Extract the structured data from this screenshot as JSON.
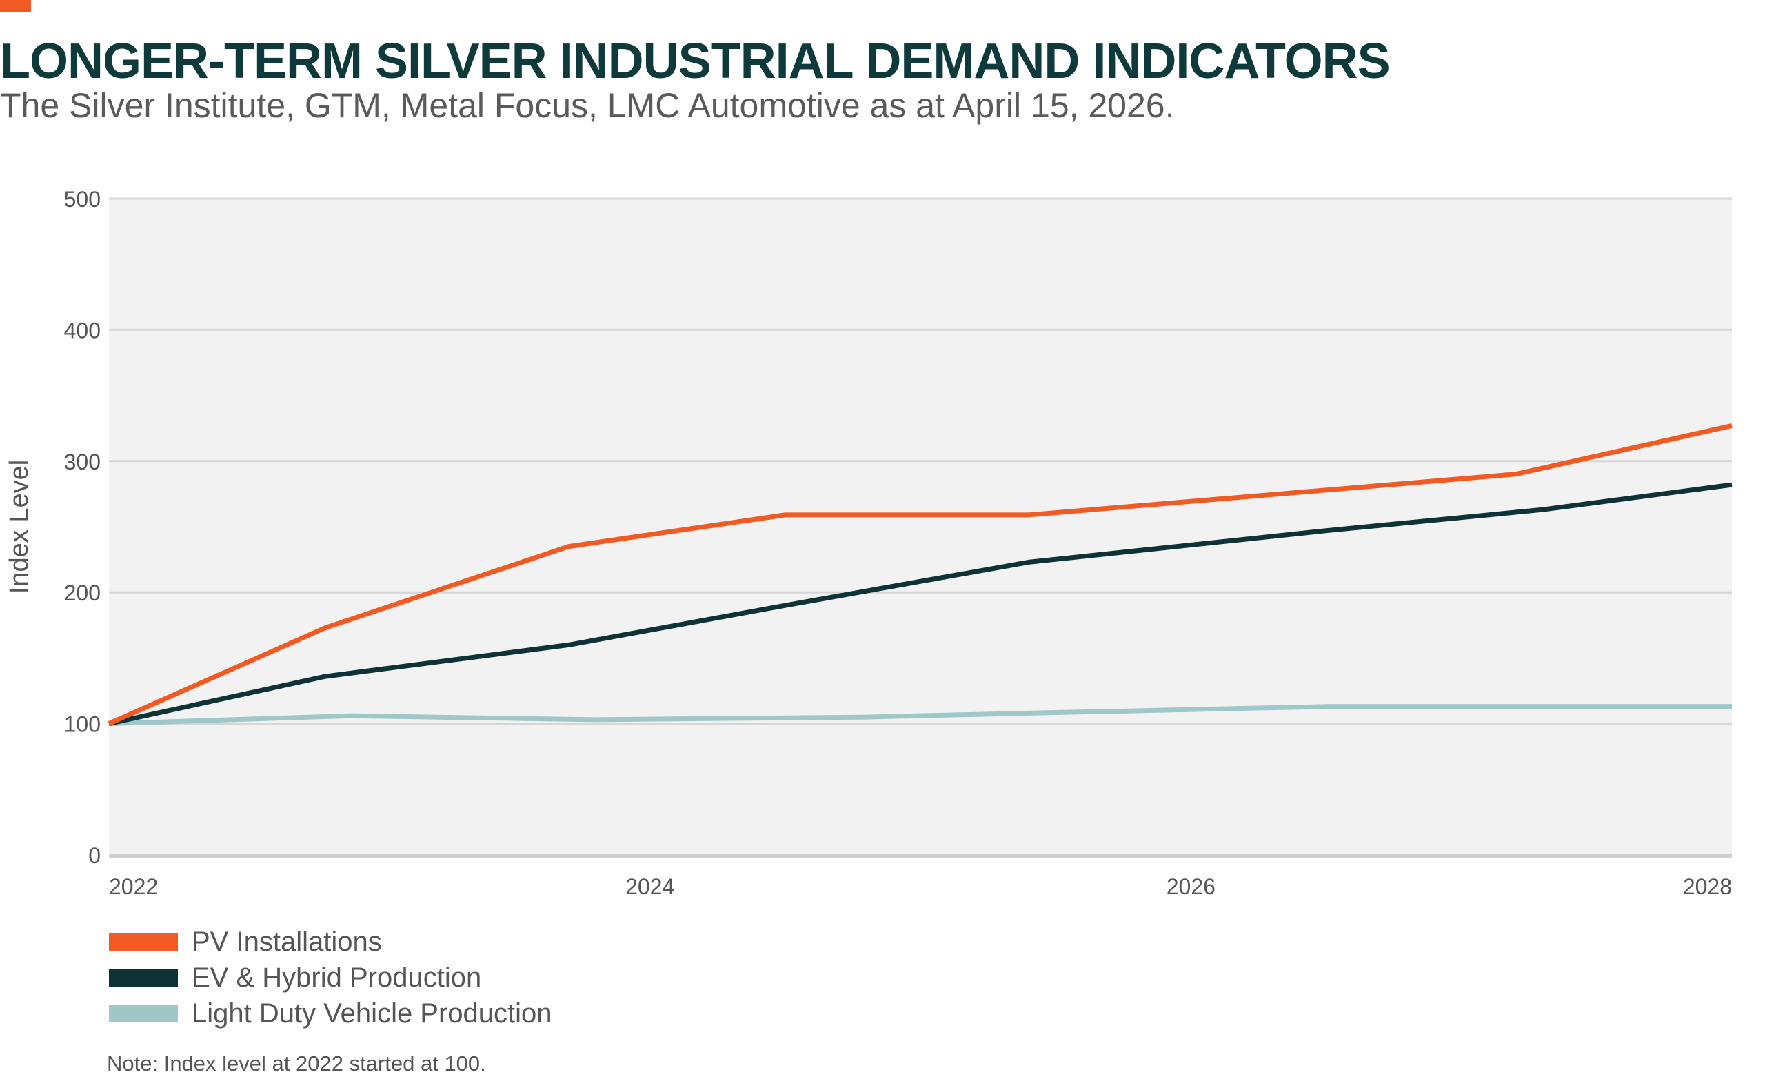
{
  "header": {
    "title": "LONGER-TERM SILVER INDUSTRIAL DEMAND INDICATORS",
    "subtitle": "The Silver Institute, GTM, Metal Focus, LMC Automotive as at April 15, 2026.",
    "note": "Note: Index level at 2022 started at 100."
  },
  "colors": {
    "accent": "#f15a22",
    "plot_bg": "#f2f2f2",
    "grid": "#d6d6d6",
    "axis_text": "#555555"
  },
  "chart_data": {
    "type": "line",
    "title": "LONGER-TERM SILVER INDUSTRIAL DEMAND INDICATORS",
    "ylabel": "Index Level",
    "xlabel": "",
    "xlim": [
      2022,
      2028
    ],
    "ylim": [
      0,
      500
    ],
    "x_ticks": [
      "2022",
      "2024",
      "2026",
      "2028"
    ],
    "y_ticks": [
      "0",
      "100",
      "200",
      "300",
      "400",
      "500"
    ],
    "grid": true,
    "legend_position": "bottom-left",
    "series": [
      {
        "name": "PV Installations",
        "color": "#f15a22",
        "points": [
          [
            2022.0,
            100
          ],
          [
            2022.8,
            173
          ],
          [
            2023.7,
            235
          ],
          [
            2024.5,
            259
          ],
          [
            2025.4,
            259
          ],
          [
            2027.2,
            290
          ],
          [
            2028.0,
            327
          ]
        ]
      },
      {
        "name": "EV & Hybrid Production",
        "color": "#0e3236",
        "points": [
          [
            2022.0,
            100
          ],
          [
            2022.8,
            136
          ],
          [
            2023.7,
            160
          ],
          [
            2024.5,
            190
          ],
          [
            2025.4,
            223
          ],
          [
            2026.5,
            247
          ],
          [
            2027.3,
            263
          ],
          [
            2028.0,
            282
          ]
        ]
      },
      {
        "name": "Light Duty Vehicle Production",
        "color": "#9ec7c8",
        "points": [
          [
            2022.0,
            100
          ],
          [
            2022.9,
            106
          ],
          [
            2023.8,
            103
          ],
          [
            2024.8,
            105
          ],
          [
            2025.4,
            108
          ],
          [
            2026.5,
            113
          ],
          [
            2027.5,
            113
          ],
          [
            2028.0,
            113
          ]
        ]
      }
    ]
  }
}
